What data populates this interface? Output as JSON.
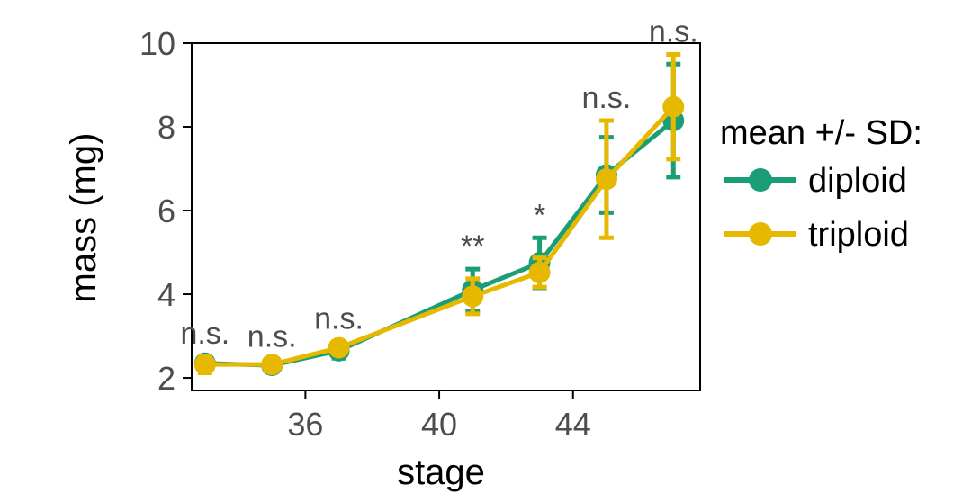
{
  "chart_data": {
    "type": "line",
    "xlabel": "stage",
    "ylabel": "mass (mg)",
    "xlim": [
      32.6,
      47.8
    ],
    "ylim": [
      1.7,
      10.0
    ],
    "xticks": [
      36,
      40,
      44
    ],
    "yticks": [
      2,
      4,
      6,
      8,
      10
    ],
    "grid": false,
    "legend_title": "mean +/- SD:",
    "legend_position": "right",
    "x": [
      33,
      35,
      37,
      41,
      43,
      45,
      47
    ],
    "series": [
      {
        "name": "diploid",
        "color": "#1b9e77",
        "values": [
          2.35,
          2.3,
          2.65,
          4.1,
          4.75,
          6.85,
          8.15
        ],
        "sd": [
          0.15,
          0.1,
          0.18,
          0.5,
          0.6,
          0.9,
          1.35
        ]
      },
      {
        "name": "triploid",
        "color": "#e6b800",
        "values": [
          2.32,
          2.32,
          2.72,
          3.95,
          4.52,
          6.75,
          8.48
        ],
        "sd": [
          0.2,
          0.12,
          0.15,
          0.42,
          0.35,
          1.4,
          1.25
        ]
      }
    ],
    "annotations": [
      {
        "x": 33,
        "text": "n.s."
      },
      {
        "x": 35,
        "text": "n.s."
      },
      {
        "x": 37,
        "text": "n.s."
      },
      {
        "x": 41,
        "text": "**"
      },
      {
        "x": 43,
        "text": "*"
      },
      {
        "x": 45,
        "text": "n.s."
      },
      {
        "x": 47,
        "text": "n.s."
      }
    ]
  }
}
